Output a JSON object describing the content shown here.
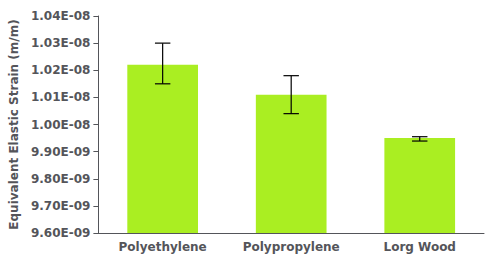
{
  "chart_data": {
    "type": "bar",
    "categories": [
      "Polyethylene",
      "Polypropylene",
      "Lorg Wood"
    ],
    "values": [
      1.022e-08,
      1.011e-08,
      9.95e-09
    ],
    "errors_upper": [
      8e-11,
      7e-11,
      5e-12
    ],
    "errors_lower": [
      7e-11,
      7e-11,
      1.1e-11
    ],
    "color": "#aaee22",
    "ylabel": "Equivalent Elastic Strain (m/m)",
    "ylim": [
      9.6e-09,
      1.04e-08
    ],
    "yticks": [
      {
        "value": 9.6e-09,
        "label": "9.60E-09"
      },
      {
        "value": 9.7e-09,
        "label": "9.70E-09"
      },
      {
        "value": 9.8e-09,
        "label": "9.80E-09"
      },
      {
        "value": 9.9e-09,
        "label": "9.90E-09"
      },
      {
        "value": 1e-08,
        "label": "1.00E-08"
      },
      {
        "value": 1.01e-08,
        "label": "1.01E-08"
      },
      {
        "value": 1.02e-08,
        "label": "1.02E-08"
      },
      {
        "value": 1.03e-08,
        "label": "1.03E-08"
      },
      {
        "value": 1.04e-08,
        "label": "1.04E-08"
      }
    ],
    "grid": false
  }
}
